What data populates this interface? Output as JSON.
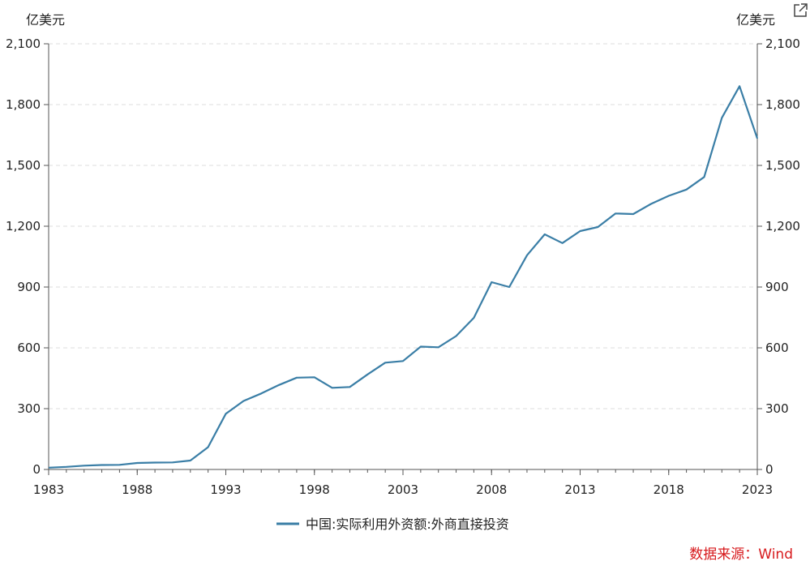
{
  "chart_data": {
    "type": "line",
    "y_unit_left": "亿美元",
    "y_unit_right": "亿美元",
    "ylim": [
      0,
      2100
    ],
    "y_ticks": [
      0,
      300,
      600,
      900,
      1200,
      1500,
      1800,
      2100
    ],
    "y_tick_labels": [
      "0",
      "300",
      "600",
      "900",
      "1,200",
      "1,500",
      "1,800",
      "2,100"
    ],
    "xlim": [
      1983,
      2023
    ],
    "x_ticks": [
      1983,
      1988,
      1993,
      1998,
      2003,
      2008,
      2013,
      2018,
      2023
    ],
    "x_tick_labels": [
      "1983",
      "1988",
      "1993",
      "1998",
      "2003",
      "2008",
      "2013",
      "2018",
      "2023"
    ],
    "grid": true,
    "legend_position": "bottom",
    "series": [
      {
        "name": "中国:实际利用外资额:外商直接投资",
        "color": "#3a7ea6",
        "x": [
          1983,
          1984,
          1985,
          1986,
          1987,
          1988,
          1989,
          1990,
          1991,
          1992,
          1993,
          1994,
          1995,
          1996,
          1997,
          1998,
          1999,
          2000,
          2001,
          2002,
          2003,
          2004,
          2005,
          2006,
          2007,
          2008,
          2009,
          2010,
          2011,
          2012,
          2013,
          2014,
          2015,
          2016,
          2017,
          2018,
          2019,
          2020,
          2021,
          2022,
          2023
        ],
        "values": [
          9,
          13,
          19,
          22,
          23,
          32,
          34,
          35,
          44,
          110,
          275,
          338,
          375,
          417,
          453,
          455,
          403,
          407,
          469,
          527,
          535,
          606,
          603,
          658,
          748,
          924,
          900,
          1057,
          1160,
          1117,
          1176,
          1196,
          1263,
          1260,
          1310,
          1350,
          1381,
          1443,
          1735,
          1891,
          1633
        ]
      }
    ]
  },
  "source": "数据来源：Wind",
  "export_icon": "external-link-icon"
}
